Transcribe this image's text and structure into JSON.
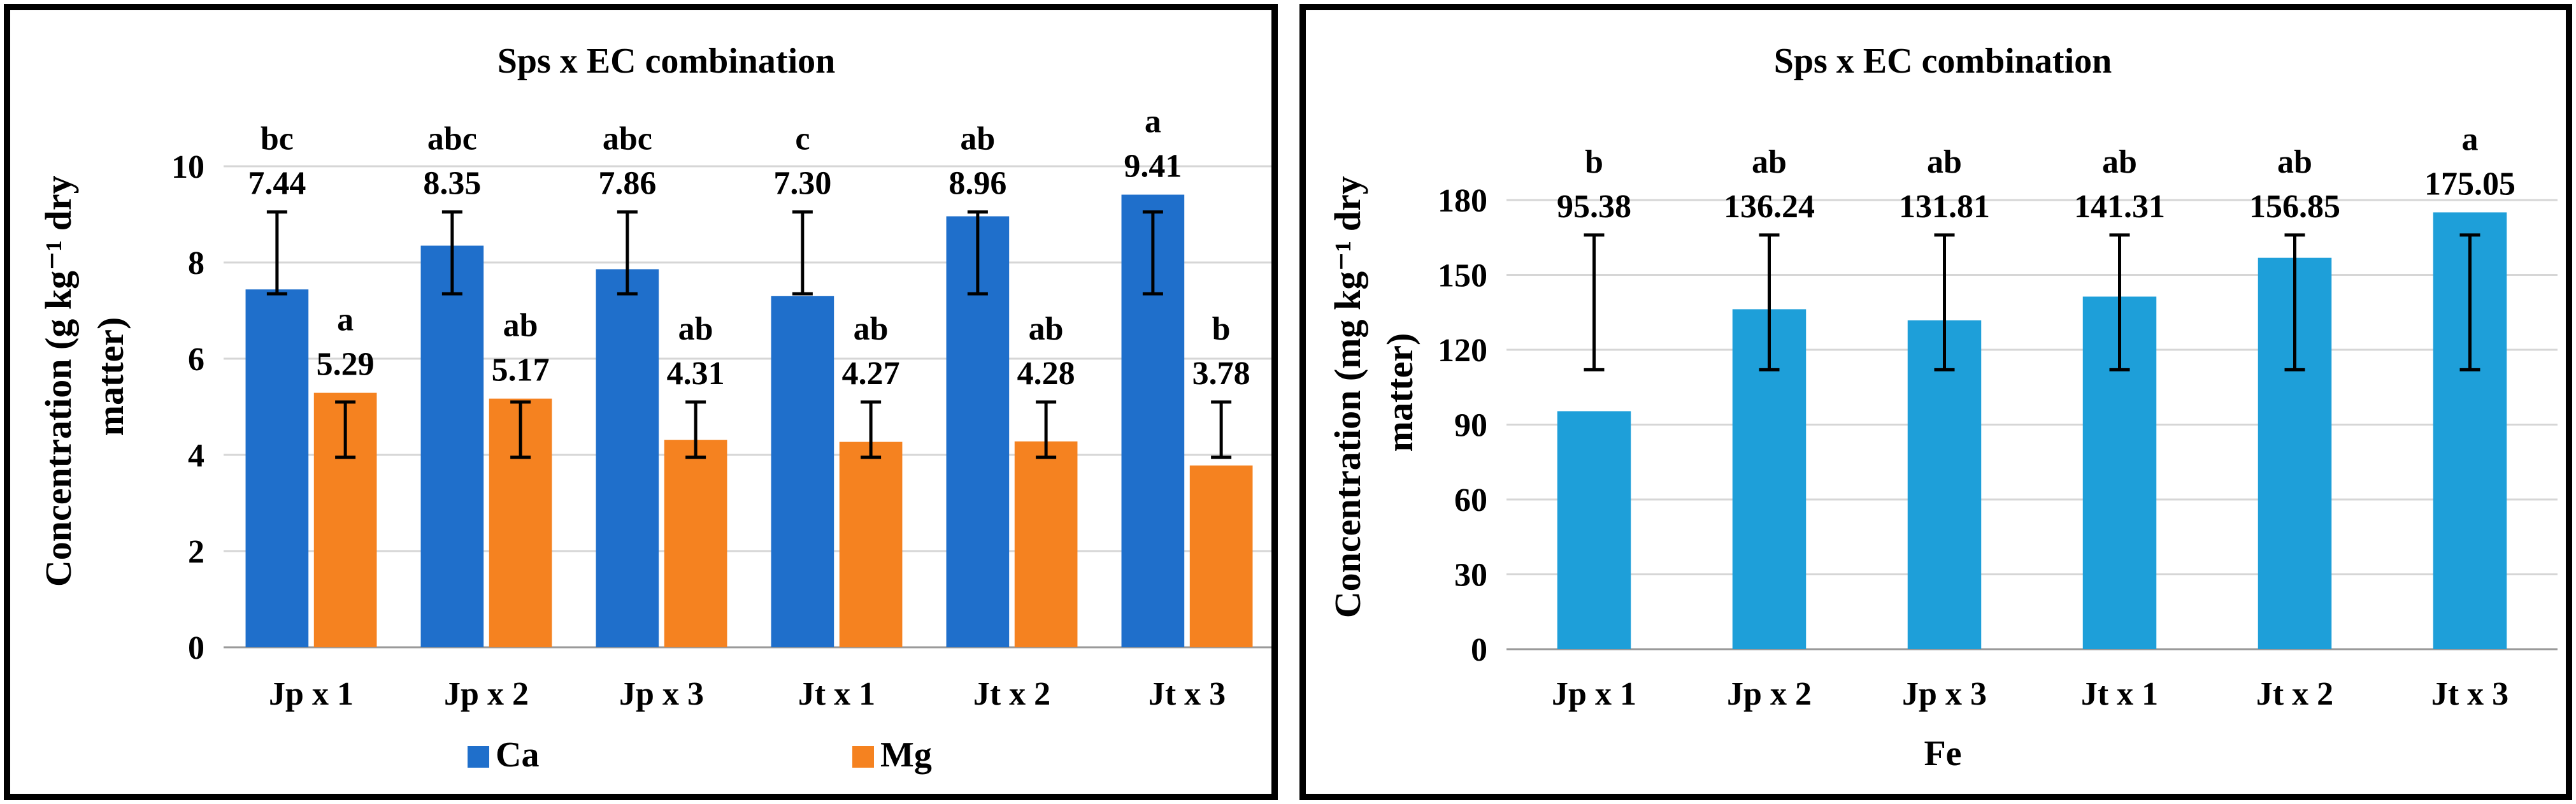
{
  "chart_data": [
    {
      "type": "bar",
      "title": "Sps x EC combination",
      "xlabel": "",
      "ylabel": "Concentration (g kg⁻¹ dry matter)",
      "ylabel_lines": [
        "Concentration (g kg⁻¹ dry",
        "matter)"
      ],
      "categories": [
        "Jp x 1",
        "Jp x 2",
        "Jp x 3",
        "Jt x 1",
        "Jt x 2",
        "Jt x 3"
      ],
      "ylim": [
        0,
        10
      ],
      "yticks": [
        "0",
        "2",
        "4",
        "6",
        "8",
        "10"
      ],
      "grid": true,
      "legend_position": "bottom",
      "series": [
        {
          "name": "Ca",
          "color": "#1f6fcb",
          "values": [
            7.44,
            8.35,
            7.86,
            7.3,
            8.96,
            9.41
          ],
          "value_labels": [
            "7.44",
            "8.35",
            "7.86",
            "7.30",
            "8.96",
            "9.41"
          ],
          "letters": [
            "bc",
            "abc",
            "abc",
            "c",
            "ab",
            "a"
          ],
          "error_low": [
            7.35,
            7.35,
            7.35,
            7.35,
            7.35,
            7.35
          ],
          "error_high": [
            9.05,
            9.05,
            9.05,
            9.05,
            9.05,
            9.05
          ]
        },
        {
          "name": "Mg",
          "color": "#f58220",
          "values": [
            5.29,
            5.17,
            4.31,
            4.27,
            4.28,
            3.78
          ],
          "value_labels": [
            "5.29",
            "5.17",
            "4.31",
            "4.27",
            "4.28",
            "3.78"
          ],
          "letters": [
            "a",
            "ab",
            "ab",
            "ab",
            "ab",
            "b"
          ],
          "error_low": [
            3.95,
            3.95,
            3.95,
            3.95,
            3.95,
            3.95
          ],
          "error_high": [
            5.1,
            5.1,
            5.1,
            5.1,
            5.1,
            5.1
          ]
        }
      ]
    },
    {
      "type": "bar",
      "title": "Sps x EC combination",
      "xlabel": "Fe",
      "ylabel": "Concentration (mg kg⁻¹ dry matter)",
      "ylabel_lines": [
        "Concentration (mg kg⁻¹ dry",
        "matter)"
      ],
      "categories": [
        "Jp x 1",
        "Jp x 2",
        "Jp x 3",
        "Jt x 1",
        "Jt x 2",
        "Jt x 3"
      ],
      "ylim": [
        0,
        180
      ],
      "yticks": [
        "0",
        "30",
        "60",
        "90",
        "120",
        "150",
        "180"
      ],
      "grid": true,
      "series": [
        {
          "name": "Fe",
          "color": "#1e9fd9",
          "values": [
            95.38,
            136.24,
            131.81,
            141.31,
            156.85,
            175.05
          ],
          "value_labels": [
            "95.38",
            "136.24",
            "131.81",
            "141.31",
            "156.85",
            "175.05"
          ],
          "letters": [
            "b",
            "ab",
            "ab",
            "ab",
            "ab",
            "a"
          ],
          "error_low": [
            112,
            112,
            112,
            112,
            112,
            112
          ],
          "error_high": [
            166,
            166,
            166,
            166,
            166,
            166
          ]
        }
      ]
    }
  ]
}
